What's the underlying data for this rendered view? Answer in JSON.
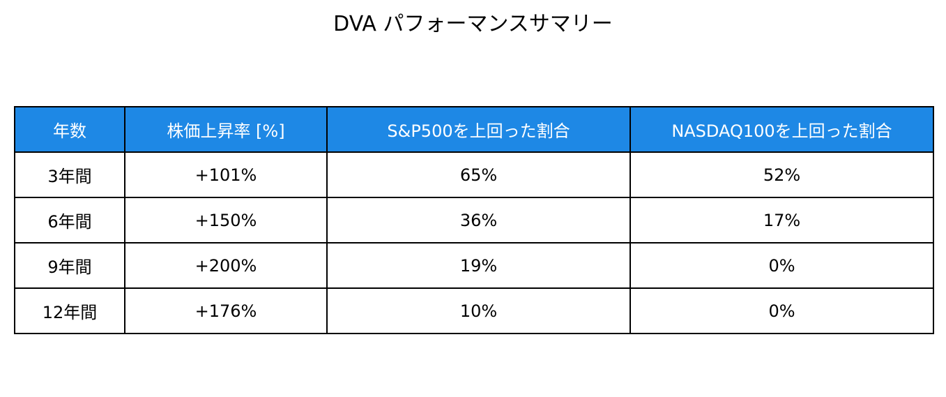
{
  "title": "DVA パフォーマンスサマリー",
  "table": {
    "header": [
      "年数",
      "株価上昇率 [%]",
      "S&P500を上回った割合",
      "NASDAQ100を上回った割合"
    ],
    "rows": [
      [
        "3年間",
        "+101%",
        "65%",
        "52%"
      ],
      [
        "6年間",
        "+150%",
        "36%",
        "17%"
      ],
      [
        "9年間",
        "+200%",
        "19%",
        "0%"
      ],
      [
        "12年間",
        "+176%",
        "10%",
        "0%"
      ]
    ]
  }
}
